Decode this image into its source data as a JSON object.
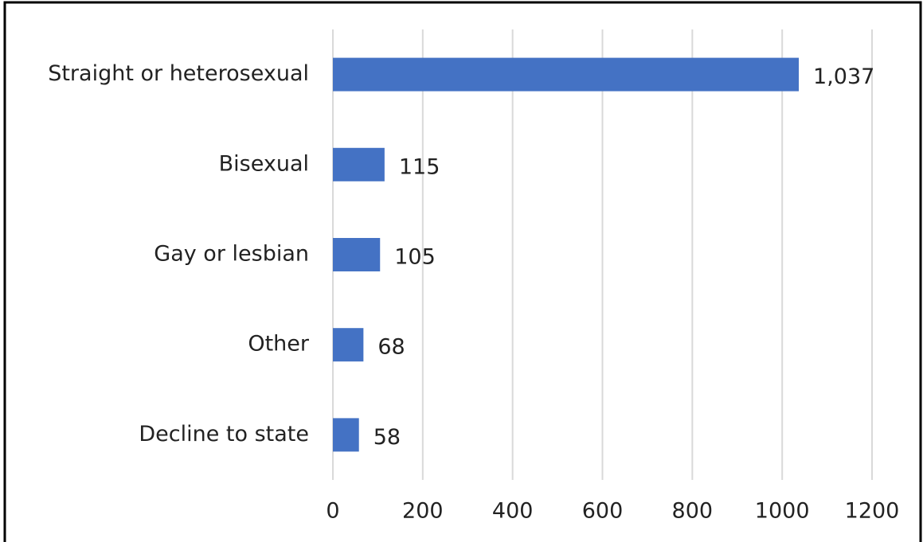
{
  "chart_data": {
    "type": "barh",
    "categories": [
      "Straight or heterosexual",
      "Bisexual",
      "Gay or lesbian",
      "Other",
      "Decline to state"
    ],
    "values": [
      1037,
      115,
      105,
      68,
      58
    ],
    "value_labels": [
      "1,037",
      "115",
      "105",
      "68",
      "58"
    ],
    "color": "#4472c4",
    "xlim": [
      0,
      1200
    ],
    "xticks": [
      0,
      200,
      400,
      600,
      800,
      1000,
      1200
    ],
    "grid": true
  }
}
